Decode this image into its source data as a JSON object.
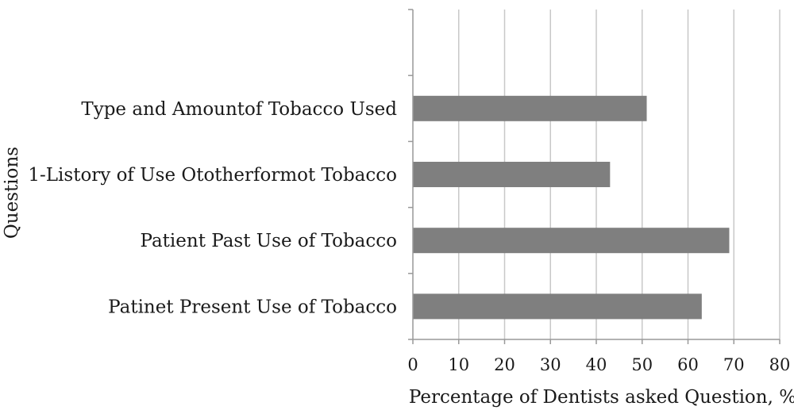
{
  "chart_data": {
    "type": "bar",
    "orientation": "horizontal",
    "title": "",
    "xlabel": "Percentage of Dentists asked Question, %",
    "ylabel": "Questions",
    "categories": [
      "Type and Amountof Tobacco Used",
      "1-Listory of Use Ototherformot Tobacco",
      "Patient Past Use of Tobacco",
      "Patinet Present Use of Tobacco"
    ],
    "values": [
      51,
      43,
      69,
      63
    ],
    "xlim": [
      0,
      80
    ],
    "xticks": [
      0,
      10,
      20,
      30,
      40,
      50,
      60,
      70,
      80
    ],
    "grid": "vertical",
    "legend": "none",
    "bar_color": "#7f7f7f",
    "grid_color": "#c8c8c8",
    "axis_color": "#999999"
  }
}
